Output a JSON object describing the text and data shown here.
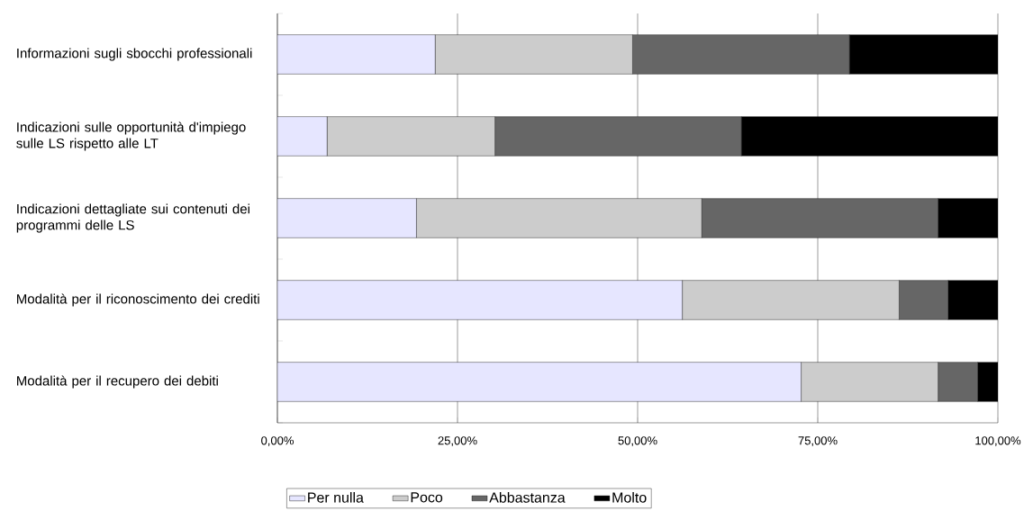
{
  "chart_data": {
    "type": "bar",
    "orientation": "horizontal",
    "stacked": true,
    "categories": [
      "Informazioni sugli sbocchi professionali",
      "Indicazioni sulle opportunità d'impiego sulle LS rispetto alle LT",
      "Indicazioni dettagliate sui contenuti dei programmi delle LS",
      "Modalità per il riconoscimento dei crediti",
      "Modalità per il recupero dei debiti"
    ],
    "series": [
      {
        "name": "Per nulla",
        "color": "#e6e6ff",
        "values": [
          21.9,
          6.9,
          19.3,
          56.2,
          72.7
        ]
      },
      {
        "name": "Poco",
        "color": "#cccccc",
        "values": [
          27.4,
          23.3,
          39.6,
          30.1,
          19.0
        ]
      },
      {
        "name": "Abbastanza",
        "color": "#666666",
        "values": [
          30.1,
          34.2,
          32.8,
          6.8,
          5.5
        ]
      },
      {
        "name": "Molto",
        "color": "#000000",
        "values": [
          20.6,
          35.6,
          8.3,
          6.9,
          2.8
        ]
      }
    ],
    "xlim": [
      0,
      100
    ],
    "xticks": [
      {
        "value": 0,
        "label": "0,00%"
      },
      {
        "value": 25,
        "label": "25,00%"
      },
      {
        "value": 50,
        "label": "50,00%"
      },
      {
        "value": 75,
        "label": "75,00%"
      },
      {
        "value": 100,
        "label": "100,00%"
      }
    ],
    "grid": "x",
    "legend": "bottom"
  }
}
